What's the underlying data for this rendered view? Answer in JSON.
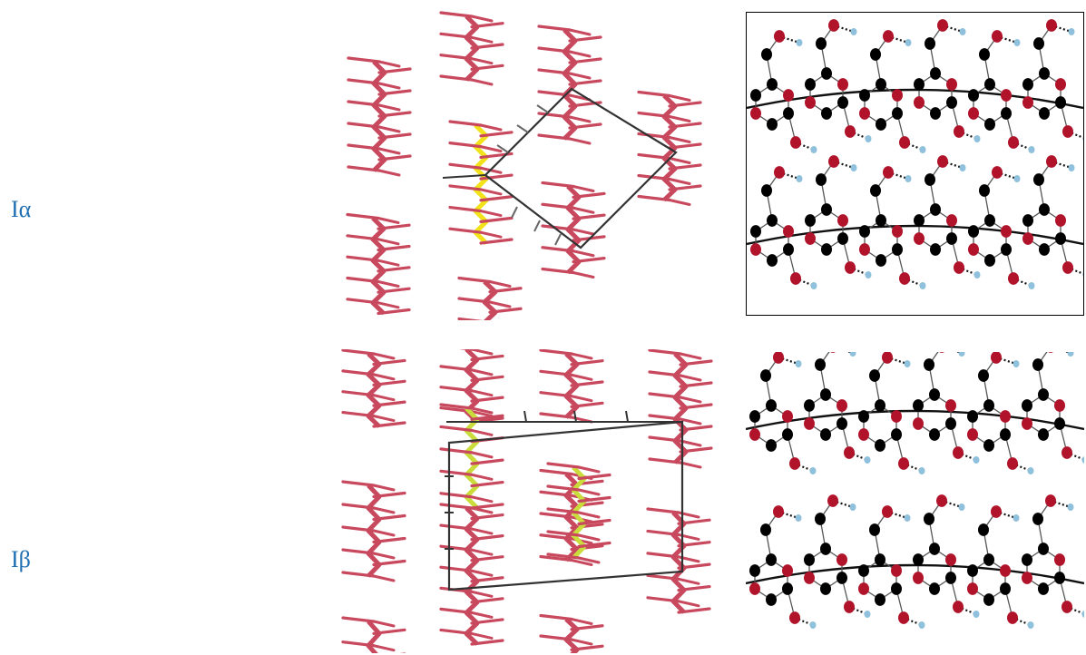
{
  "rows": [
    {
      "label": "Iα"
    },
    {
      "label": "Iβ"
    }
  ],
  "colors": {
    "label": "#1f6fb2",
    "chain": "#c8485e",
    "chain_highlight_a": "#f2e21a",
    "chain_highlight_b": "#c9dc3c",
    "unit_cell": "#333333",
    "carbon": "#000000",
    "oxygen": "#b0132a",
    "hydrogen": "#8fc1dd"
  }
}
